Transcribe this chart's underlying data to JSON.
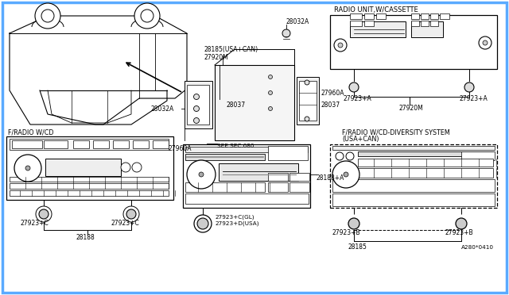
{
  "bg_color": "#ffffff",
  "border_color": "#5aaaff",
  "line_color": "#000000",
  "text_color": "#000000",
  "labels": {
    "radio_cassette": "RADIO UNIT,W/CASSETTE",
    "f_radio_cd": "F/RADIO W/CD",
    "f_radio_diversity": "F/RADIO W/CD-DIVERSITY SYSTEM",
    "f_radio_diversity2": "(USA+CAN)",
    "see_sec": "SEE SEC.680",
    "part_28032a_top": "28032A",
    "part_28185_can": "28185(USA+CAN)",
    "part_27920M_top": "27920M",
    "part_28037_top": "28037",
    "part_28032a_mid": "28032A",
    "part_27960a_right": "27960A",
    "part_28037_right": "28037",
    "part_27960a_bot": "27960A",
    "part_27923a_L": "27923+A",
    "part_27923a_R": "27923+A",
    "part_27920M_bot": "27920M",
    "part_27923c_L": "27923+C",
    "part_27923c_R": "27923+C",
    "part_28188": "28188",
    "part_28188a": "28188+A",
    "part_27923c_gl": "27923+C(GL)",
    "part_27923d_usa": "27923+D(USA)",
    "part_27923b_L": "27923+B",
    "part_27923b_R": "27923+B",
    "part_28185_bot": "28185",
    "part_a280": "A280*0410"
  }
}
